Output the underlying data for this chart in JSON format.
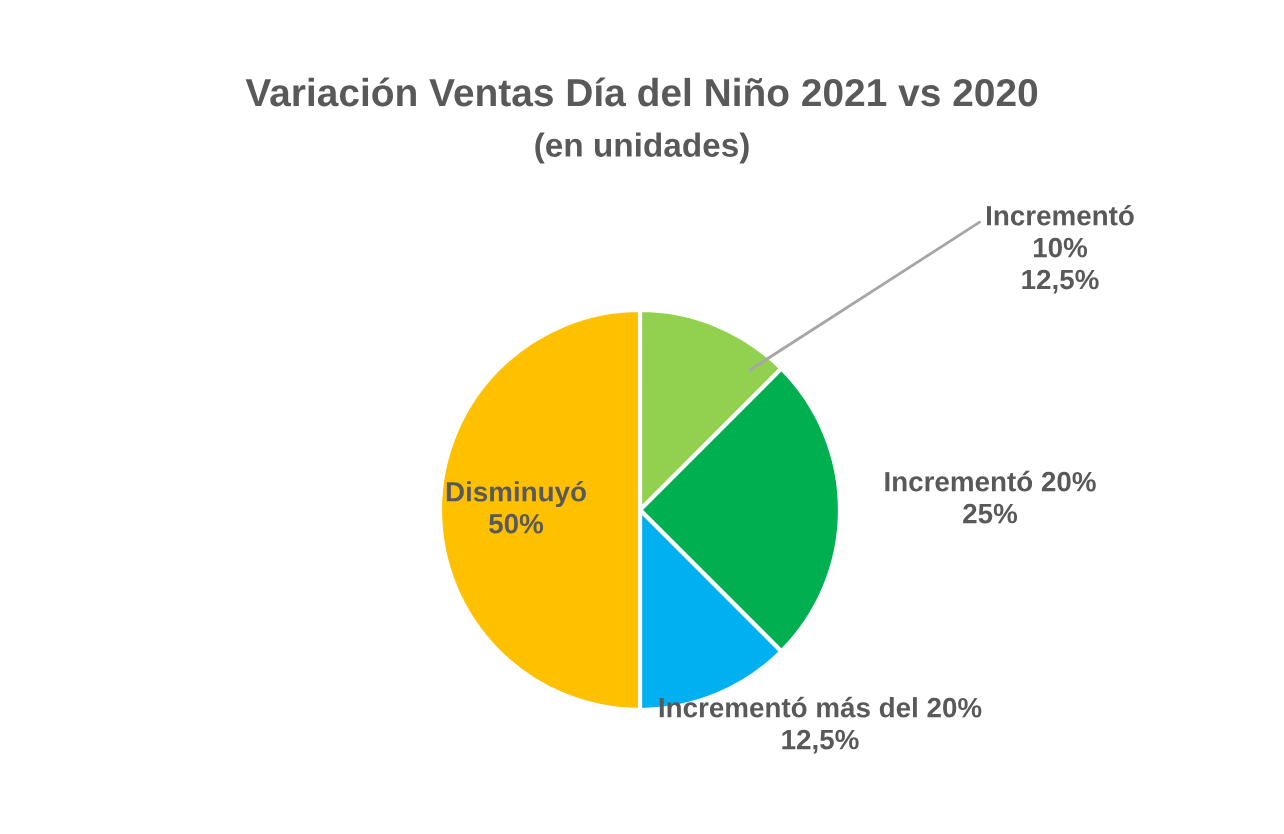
{
  "chart_data": {
    "type": "pie",
    "title": "Variación Ventas Día del Niño 2021 vs 2020",
    "subtitle": "(en unidades)",
    "categories": [
      "Incrementó 10%",
      "Incrementó 20%",
      "Incrementó más del 20%",
      "Disminuyó"
    ],
    "values": [
      12.5,
      25,
      12.5,
      50
    ],
    "value_labels": [
      "12,5%",
      "25%",
      "12,5%",
      "50%"
    ],
    "colors": [
      "#92d050",
      "#00b050",
      "#00b0f0",
      "#ffc000"
    ],
    "legend": false
  }
}
